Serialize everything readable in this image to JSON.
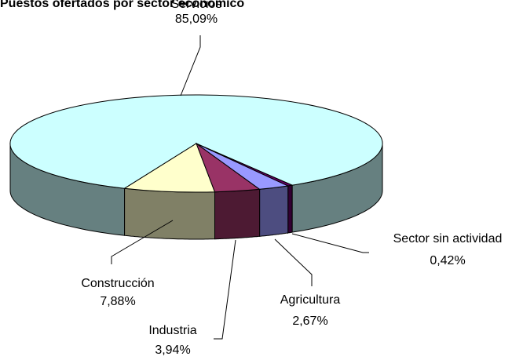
{
  "chart_data": {
    "type": "pie3d",
    "title": "Puestos ofertados por sector económico",
    "categories": [
      "Servicios",
      "Construcción",
      "Industria",
      "Agricultura",
      "Sector sin actividad"
    ],
    "values": [
      85.09,
      7.88,
      3.94,
      2.67,
      0.42
    ],
    "value_labels": [
      "85,09%",
      "7,88%",
      "3,94%",
      "2,67%",
      "0,42%"
    ],
    "colors": [
      "#ccffff",
      "#ffffcc",
      "#993366",
      "#9999ff",
      "#660066"
    ]
  }
}
